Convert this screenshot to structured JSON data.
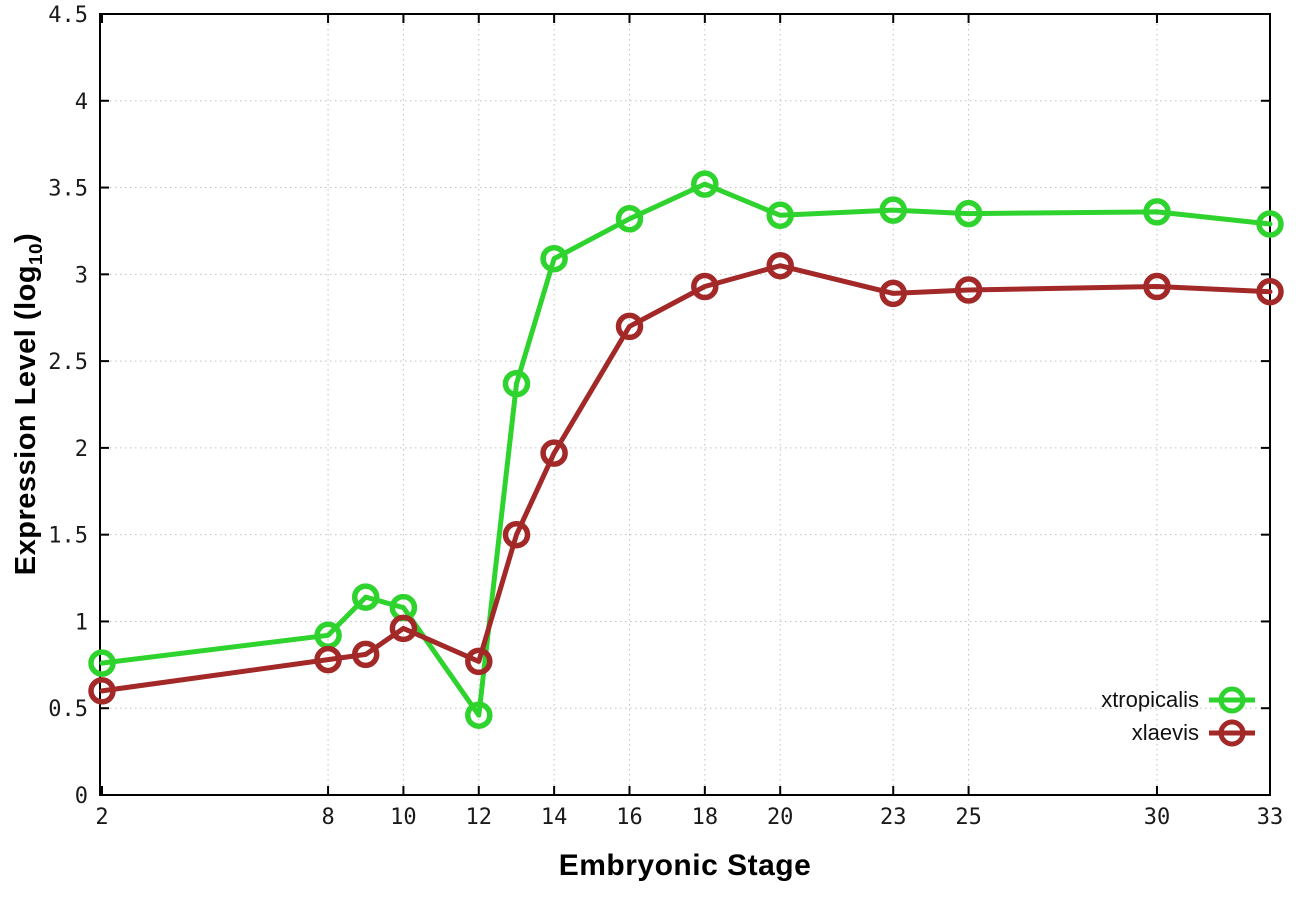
{
  "chart_data": {
    "type": "line",
    "xlabel": "Embryonic Stage",
    "ylabel": "Expression Level (log10)",
    "ylabel_parts": {
      "main": "Expression Level (log",
      "sub": "10",
      "close": ")"
    },
    "x": [
      2,
      8,
      9,
      10,
      12,
      13,
      14,
      16,
      18,
      20,
      23,
      25,
      30,
      33
    ],
    "series": [
      {
        "name": "xtropicalis",
        "color": "#2ed32e",
        "values": [
          0.76,
          0.92,
          1.14,
          1.08,
          0.46,
          2.37,
          3.09,
          3.32,
          3.52,
          3.34,
          3.37,
          3.35,
          3.36,
          3.29
        ]
      },
      {
        "name": "xlaevis",
        "color": "#a32828",
        "values": [
          0.6,
          0.78,
          0.81,
          0.96,
          0.77,
          1.5,
          1.97,
          2.7,
          2.93,
          3.05,
          2.89,
          2.91,
          2.93,
          2.9
        ]
      }
    ],
    "xticks": [
      2,
      8,
      10,
      12,
      14,
      16,
      18,
      20,
      23,
      25,
      30,
      33
    ],
    "xtick_labels": [
      "2",
      "8",
      "10",
      "12",
      "14",
      "16",
      "18",
      "20",
      "23",
      "25",
      "30",
      "33"
    ],
    "yticks": [
      0,
      0.5,
      1,
      1.5,
      2,
      2.5,
      3,
      3.5,
      4,
      4.5
    ],
    "ytick_labels": [
      "0",
      "0.5",
      "1",
      "1.5",
      "2",
      "2.5",
      "3",
      "3.5",
      "4",
      "4.5"
    ],
    "xlim": [
      2,
      33
    ],
    "ylim": [
      0,
      4.5
    ],
    "grid": true,
    "legend_position": "inside-right-lower",
    "colors": {
      "axis": "#000000",
      "grid": "#c0c0c0",
      "tick_label": "#1a1a1a",
      "background": "#ffffff"
    }
  }
}
